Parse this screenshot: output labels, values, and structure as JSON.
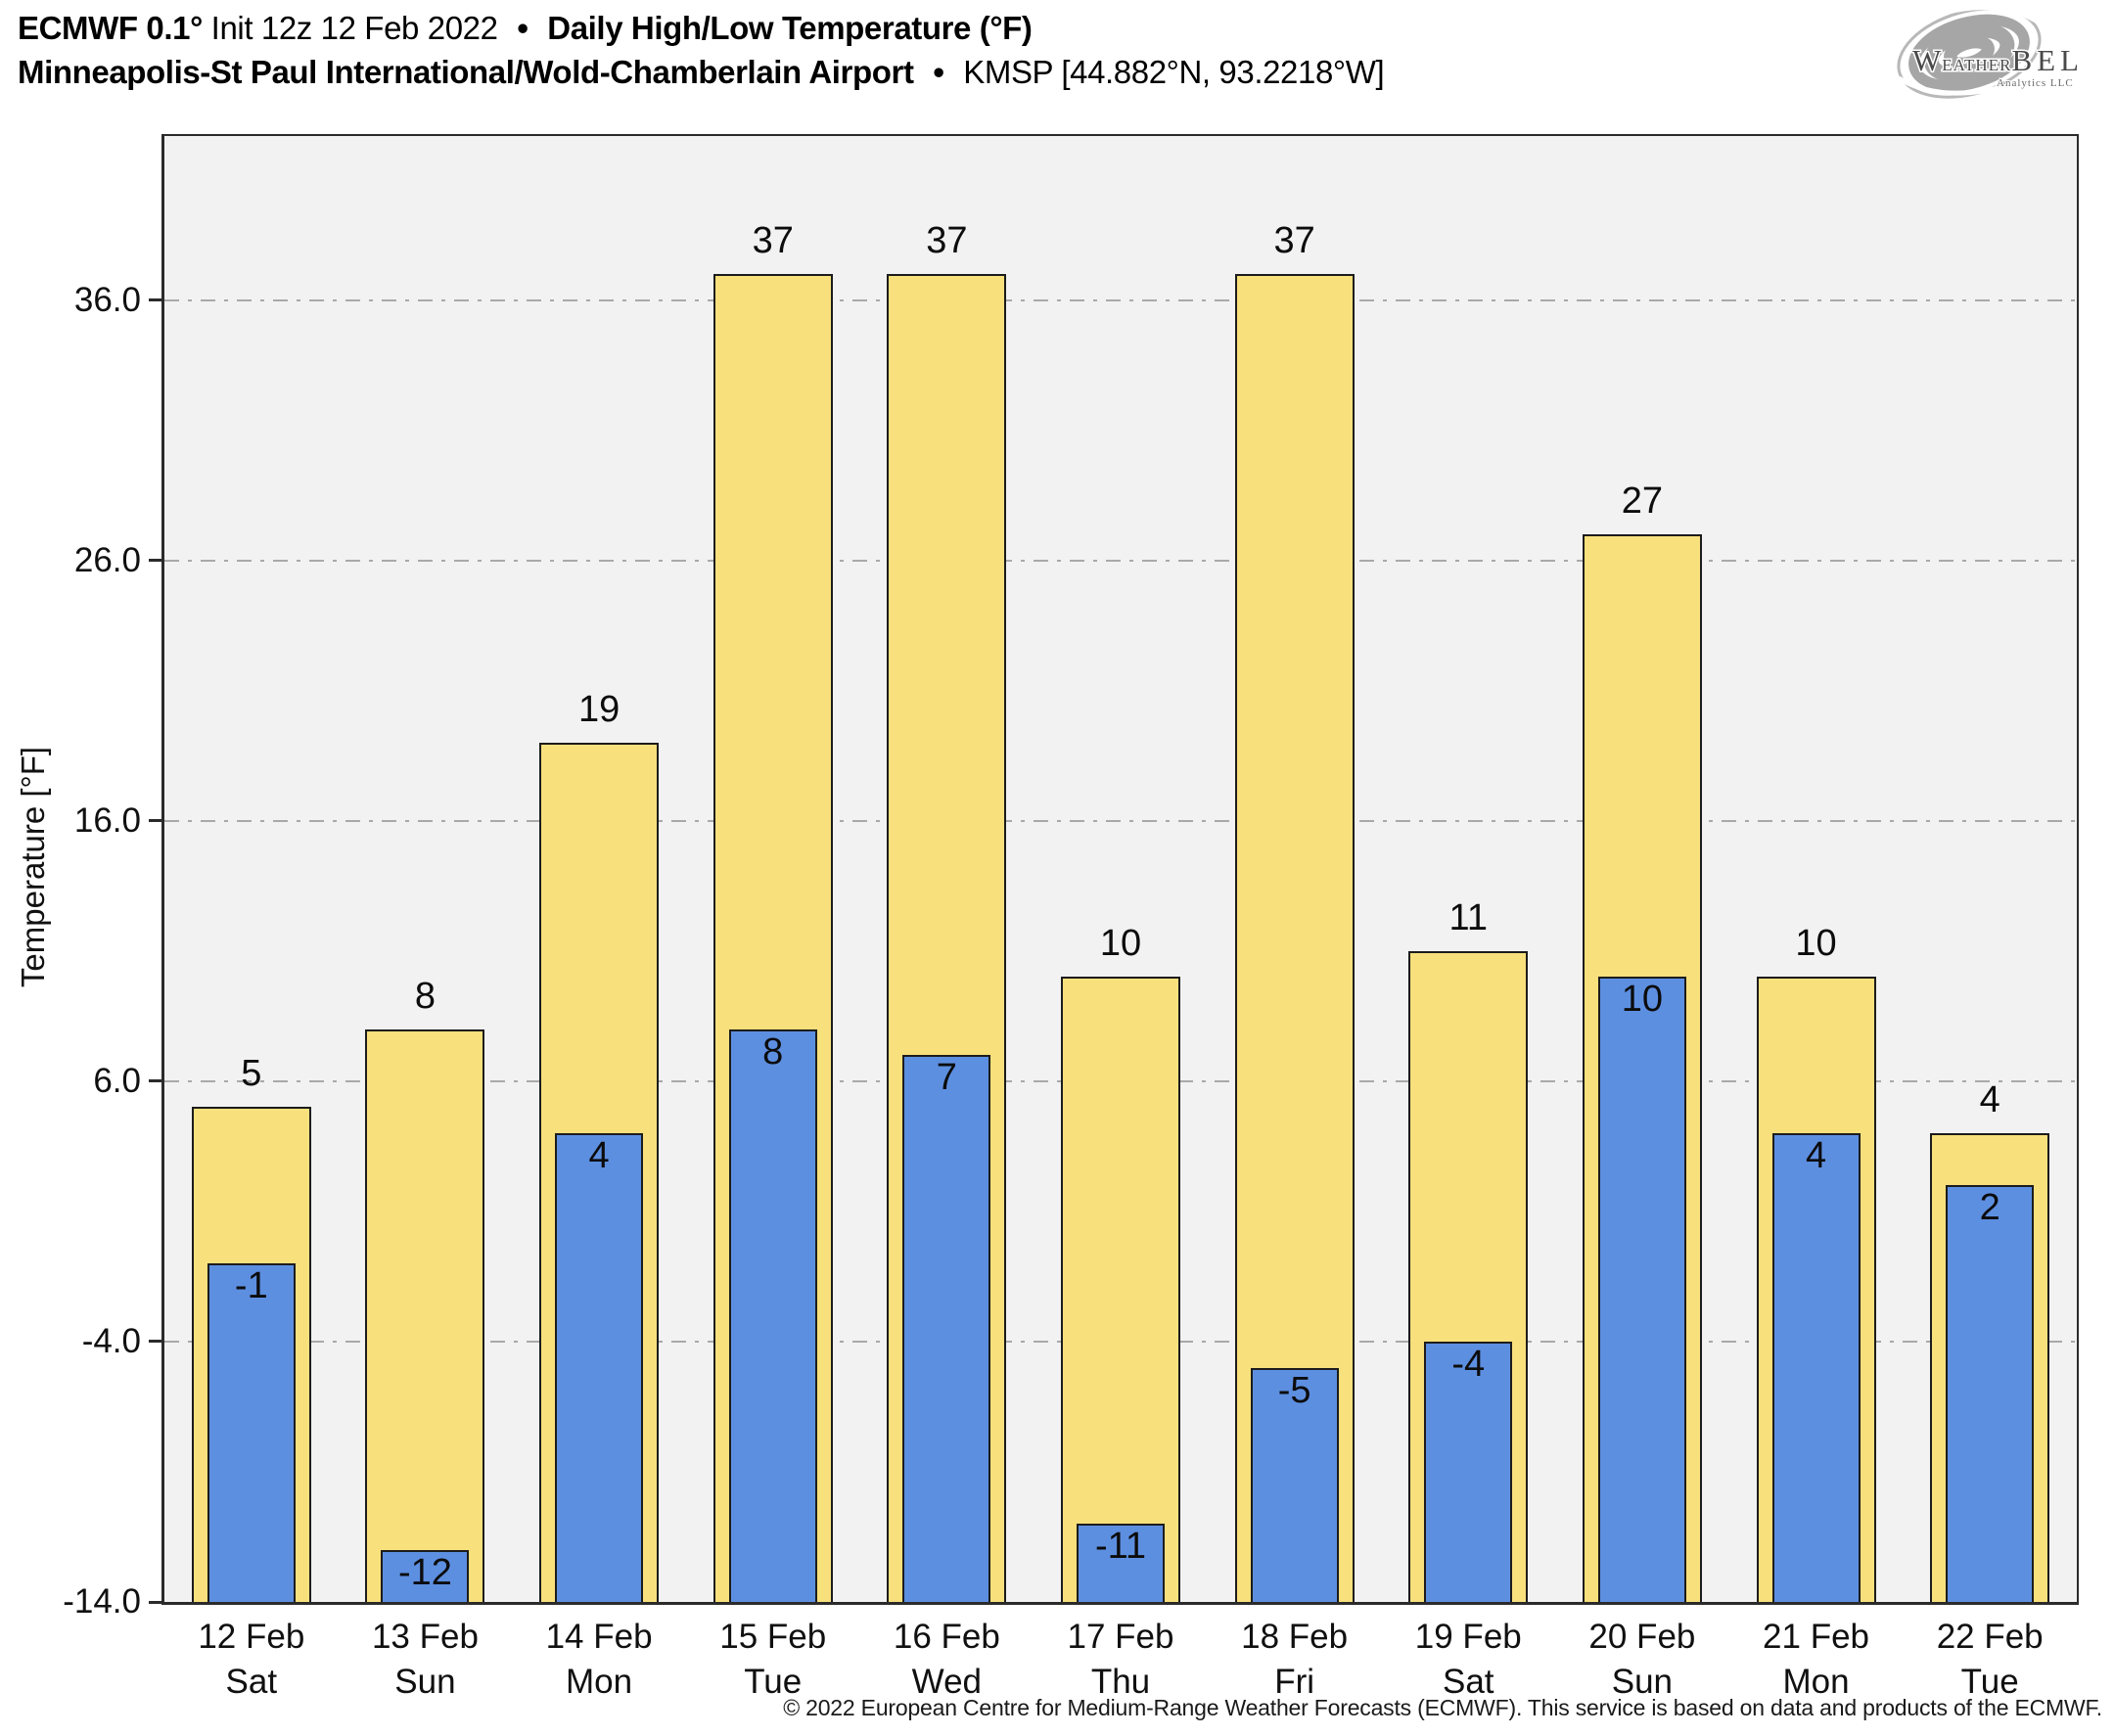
{
  "header": {
    "line1": {
      "model": "ECMWF 0.1°",
      "init": "Init 12z 12 Feb 2022",
      "sep": "•",
      "product": "Daily High/Low Temperature (°F)"
    },
    "line2": {
      "station": "Minneapolis-St Paul International/Wold-Chamberlain Airport",
      "sep": "•",
      "meta": "KMSP [44.882°N, 93.2218°W]"
    }
  },
  "logo": {
    "w": "W",
    "eather": "EATHER",
    "bell": "BELL",
    "subtext": "Analytics LLC"
  },
  "chart_data": {
    "type": "bar",
    "title": "ECMWF 0.1° Init 12z 12 Feb 2022 • Daily High/Low Temperature (°F)",
    "subtitle": "Minneapolis-St Paul International/Wold-Chamberlain Airport • KMSP [44.882°N, 93.2218°W]",
    "ylabel": "Temperature [°F]",
    "categories": [
      "12 Feb",
      "13 Feb",
      "14 Feb",
      "15 Feb",
      "16 Feb",
      "17 Feb",
      "18 Feb",
      "19 Feb",
      "20 Feb",
      "21 Feb",
      "22 Feb"
    ],
    "weekdays": [
      "Sat",
      "Sun",
      "Mon",
      "Tue",
      "Wed",
      "Thu",
      "Fri",
      "Sat",
      "Sun",
      "Mon",
      "Tue"
    ],
    "series": [
      {
        "name": "Daily High",
        "color": "#F8E07C",
        "values": [
          5,
          8,
          19,
          37,
          37,
          10,
          37,
          11,
          27,
          10,
          4
        ]
      },
      {
        "name": "Daily Low",
        "color": "#5D8FE1",
        "values": [
          -1,
          -12,
          4,
          8,
          7,
          -11,
          -5,
          -4,
          10,
          4,
          2
        ]
      }
    ],
    "yticks": [
      36.0,
      26.0,
      16.0,
      6.0,
      -4.0,
      -14.0
    ],
    "ytick_labels": [
      "36.0",
      "26.0",
      "16.0",
      "6.0",
      "-4.0",
      "-14.0"
    ],
    "ylim": [
      -14,
      42.3
    ],
    "grid": "horizontal-dash-dot",
    "legend": "none"
  },
  "footer": {
    "copyright": "© 2022 European Centre for Medium-Range Weather Forecasts (ECMWF). This service is based on data and products of the ECMWF."
  },
  "colors": {
    "high_bar": "#F8E07C",
    "low_bar": "#5D8FE1",
    "bar_border": "#1c1c1c",
    "plot_bg": "#f2f2f2",
    "grid": "#a9a9a9",
    "axis": "#2b2b2b"
  }
}
